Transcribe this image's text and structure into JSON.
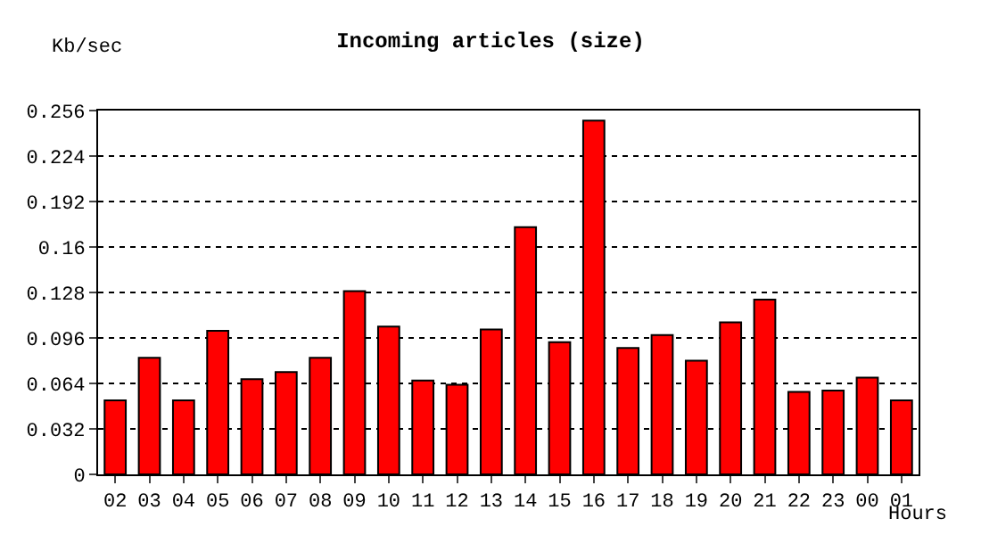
{
  "chart_data": {
    "type": "bar",
    "title": "Incoming articles (size)",
    "ylabel": "Kb/sec",
    "xlabel": "Hours",
    "categories": [
      "02",
      "03",
      "04",
      "05",
      "06",
      "07",
      "08",
      "09",
      "10",
      "11",
      "12",
      "13",
      "14",
      "15",
      "16",
      "17",
      "18",
      "19",
      "20",
      "21",
      "22",
      "23",
      "00",
      "01"
    ],
    "values": [
      0.052,
      0.082,
      0.052,
      0.101,
      0.067,
      0.072,
      0.082,
      0.129,
      0.104,
      0.066,
      0.063,
      0.102,
      0.174,
      0.093,
      0.249,
      0.089,
      0.098,
      0.08,
      0.107,
      0.123,
      0.058,
      0.059,
      0.068,
      0.052
    ],
    "color": "#ff0000",
    "ylim": [
      0,
      0.256
    ],
    "yticks": [
      0,
      0.032,
      0.064,
      0.096,
      {
        "value": 0.128,
        "label": "0.128"
      },
      0.16,
      0.192,
      0.224,
      0.256
    ],
    "grid": "y"
  }
}
